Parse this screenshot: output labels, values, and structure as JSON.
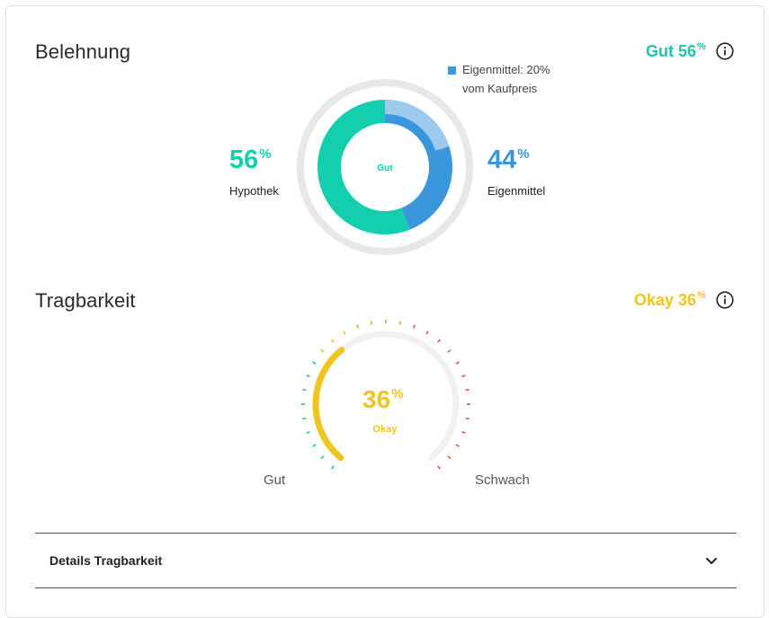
{
  "belehnung": {
    "title": "Belehnung",
    "rating_label": "Gut 56",
    "rating_pct_sign": "%",
    "rating_color": "#1dc5ab",
    "legend_text": "Eigenmittel: 20%\nvom Kaufpreis",
    "legend_color": "#3b97dc",
    "center_label": "Gut",
    "hypothek": {
      "value": "56",
      "pct_sign": "%",
      "label": "Hypothek",
      "color": "#13cfad",
      "share": 0.56
    },
    "eigenmittel": {
      "value": "44",
      "pct_sign": "%",
      "label": "Eigenmittel",
      "color": "#3b97dc",
      "share": 0.44
    },
    "min_eigenmittel_share": 0.2,
    "info_icon": "info-icon"
  },
  "tragbarkeit": {
    "title": "Tragbarkeit",
    "rating_label": "Okay 36",
    "rating_pct_sign": "%",
    "rating_color": "#f0c520",
    "gauge_value": "36",
    "gauge_pct_sign": "%",
    "gauge_status": "Okay",
    "gauge_level": 0.36,
    "label_left": "Gut",
    "label_right": "Schwach",
    "info_icon": "info-icon"
  },
  "details": {
    "title": "Details Tragbarkeit",
    "icon": "chevron-down-icon"
  }
}
